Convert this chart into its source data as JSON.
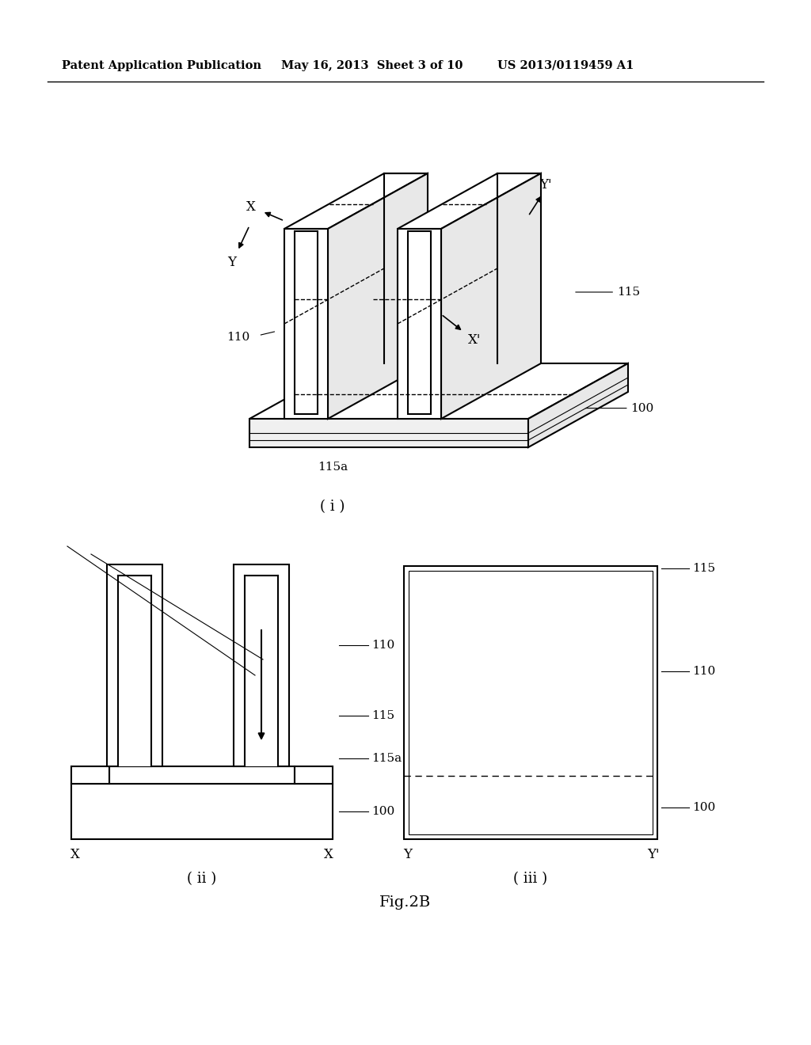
{
  "header_left": "Patent Application Publication",
  "header_mid": "May 16, 2013  Sheet 3 of 10",
  "header_right": "US 2013/0119459 A1",
  "figure_label": "Fig.2B",
  "label_100": "100",
  "label_110": "110",
  "label_115": "115",
  "label_115a": "115a",
  "sub_i": "( i )",
  "sub_ii": "( ii )",
  "sub_iii": "( iii )",
  "bg_color": "#ffffff",
  "line_color": "#000000"
}
